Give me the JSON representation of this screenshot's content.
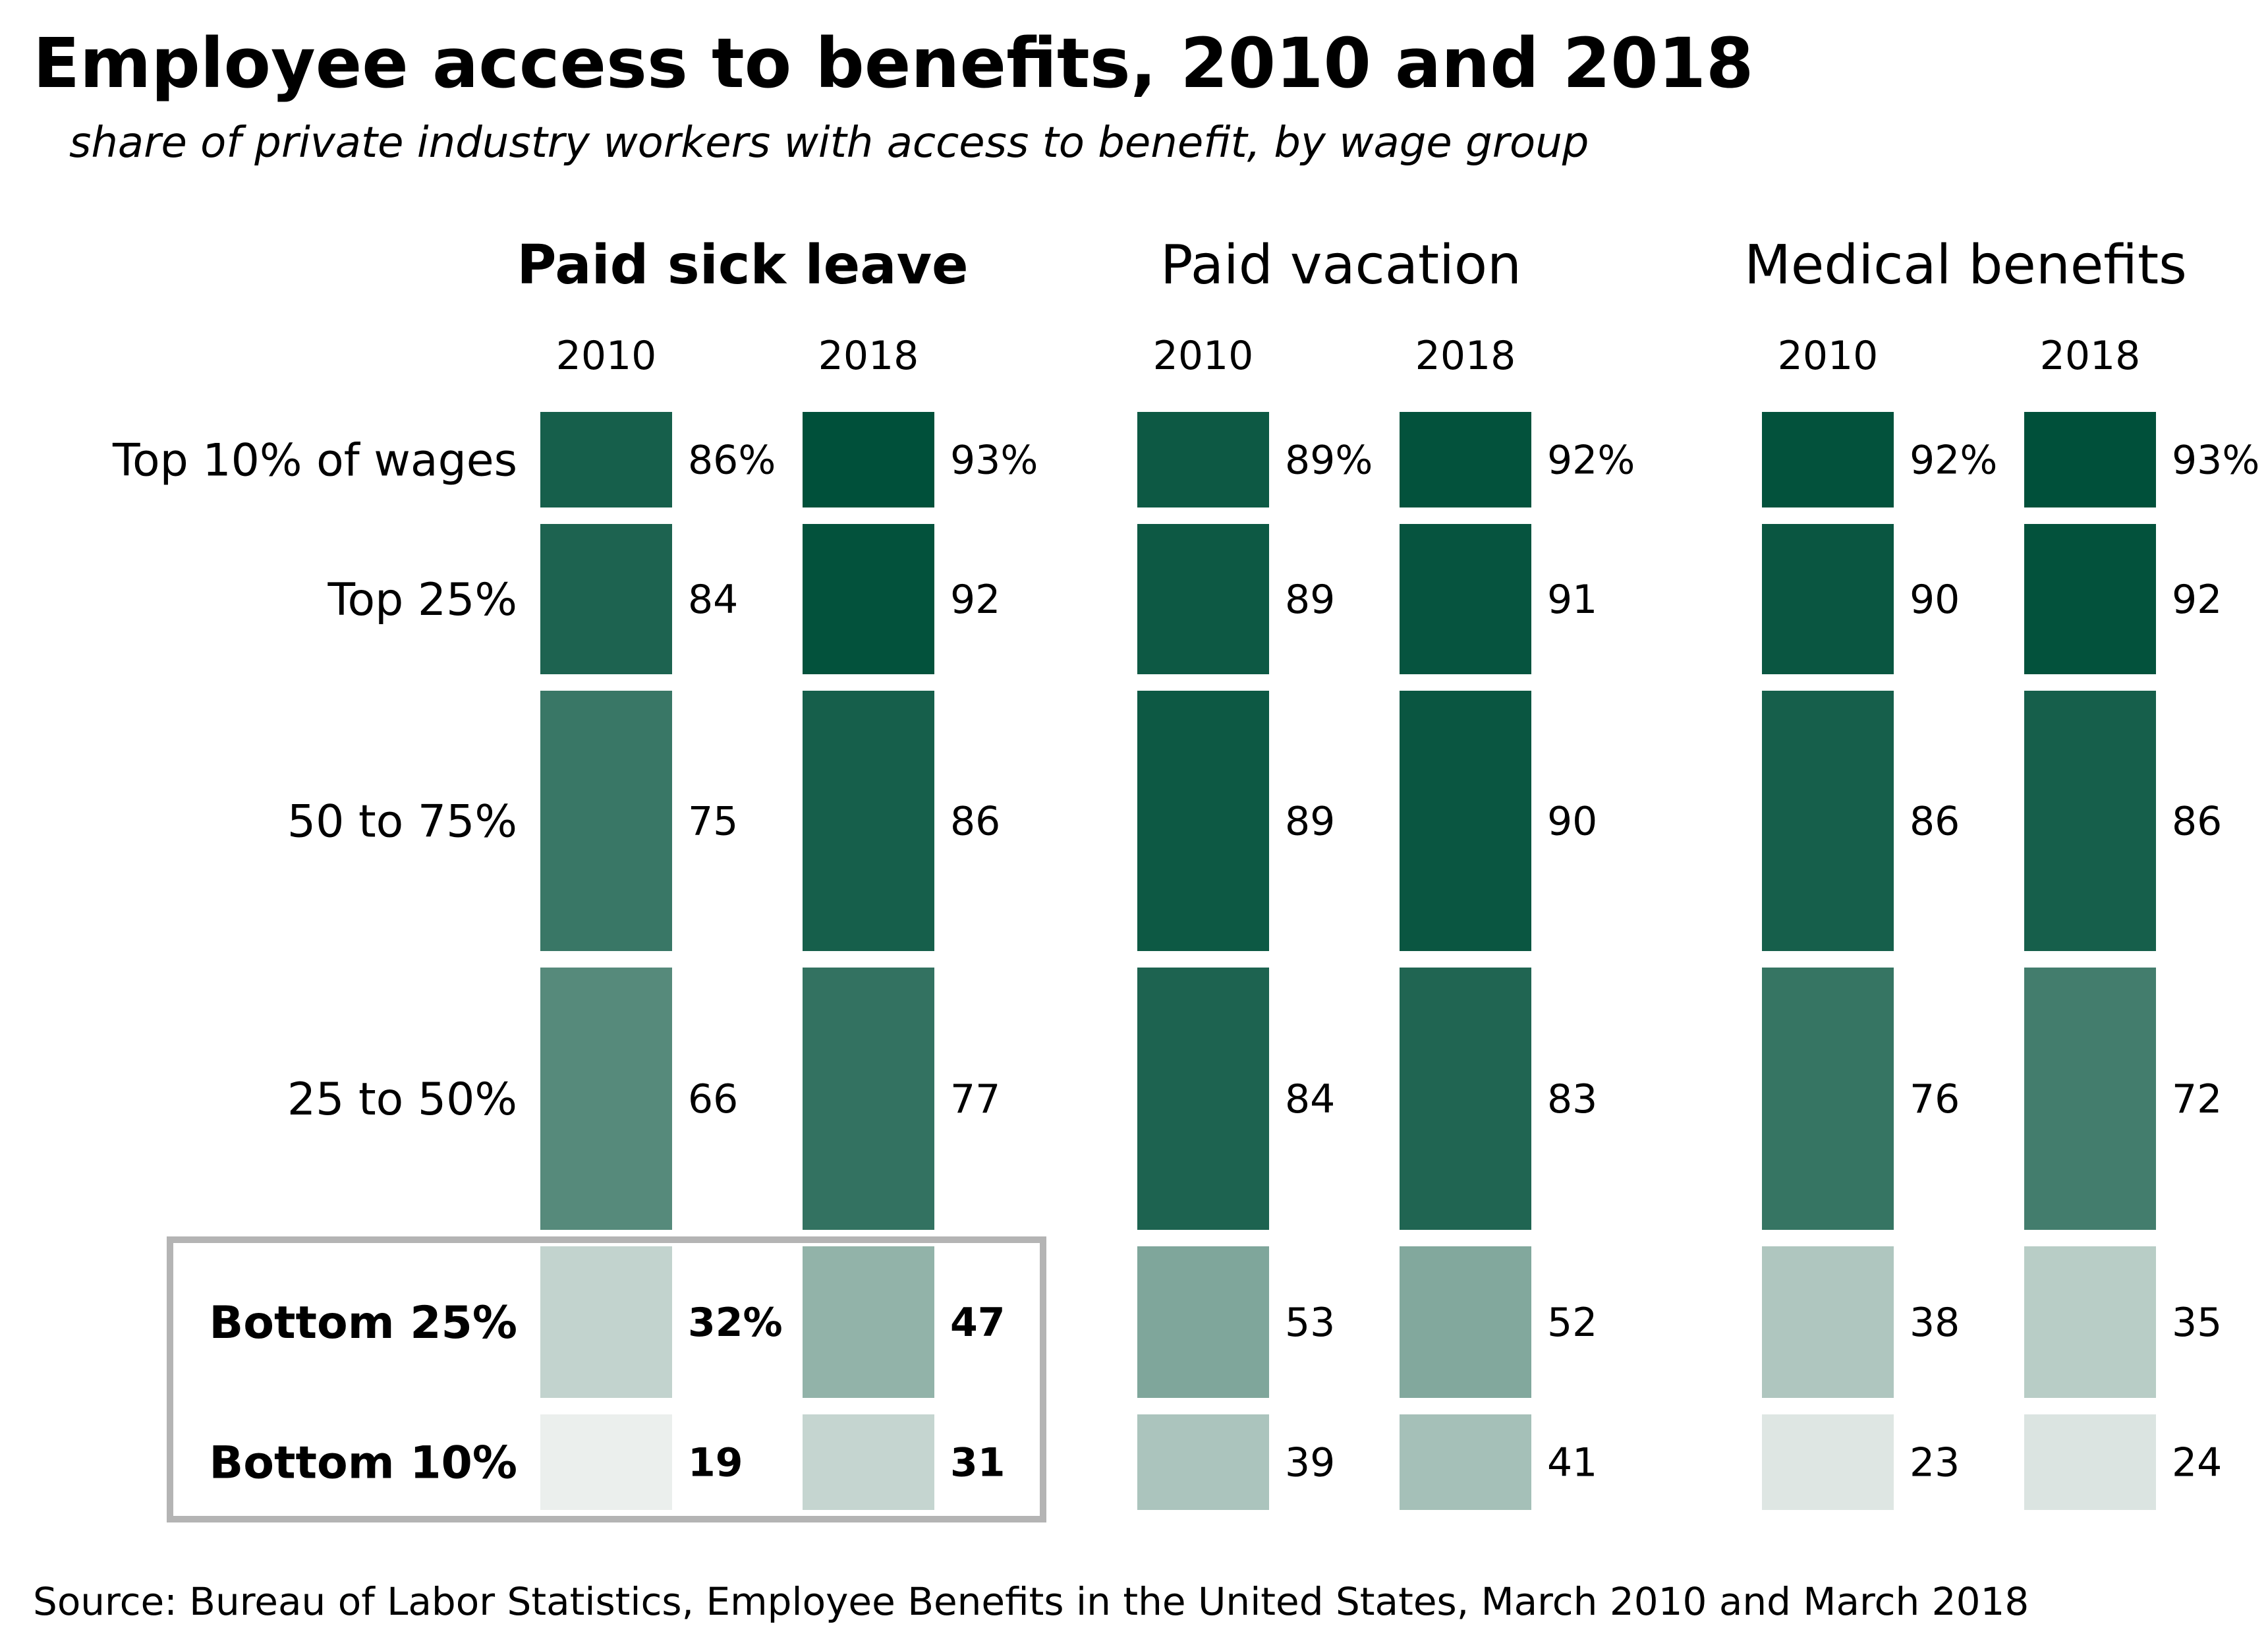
{
  "title": "Employee access to benefits, 2010 and 2018",
  "subtitle": "share of private industry workers with access to benefit, by wage group",
  "source": "Source: Bureau of Labor Statistics, Employee Benefits in the United States, March 2010 and March 2018",
  "chart_data": {
    "type": "heatmap",
    "rows": [
      "Top 10% of wages",
      "Top 25%",
      "50 to 75%",
      "25 to 50%",
      "Bottom 25%",
      "Bottom 10%"
    ],
    "highlighted_rows": [
      "Bottom 25%",
      "Bottom 10%"
    ],
    "panels": [
      {
        "title": "Paid sick leave",
        "emphasized": true,
        "columns": [
          {
            "year": "2010",
            "values": [
              86,
              84,
              75,
              66,
              32,
              19
            ],
            "labels": [
              "86%",
              "84",
              "75",
              "66",
              "32%",
              "19"
            ]
          },
          {
            "year": "2018",
            "values": [
              93,
              92,
              86,
              77,
              47,
              31
            ],
            "labels": [
              "93%",
              "92",
              "86",
              "77",
              "47",
              "31"
            ]
          }
        ]
      },
      {
        "title": "Paid vacation",
        "emphasized": false,
        "columns": [
          {
            "year": "2010",
            "values": [
              89,
              89,
              89,
              84,
              53,
              39
            ],
            "labels": [
              "89%",
              "89",
              "89",
              "84",
              "53",
              "39"
            ]
          },
          {
            "year": "2018",
            "values": [
              92,
              91,
              90,
              83,
              52,
              41
            ],
            "labels": [
              "92%",
              "91",
              "90",
              "83",
              "52",
              "41"
            ]
          }
        ]
      },
      {
        "title": "Medical benefits",
        "emphasized": false,
        "columns": [
          {
            "year": "2010",
            "values": [
              92,
              90,
              86,
              76,
              38,
              23
            ],
            "labels": [
              "92%",
              "90",
              "86",
              "76",
              "38",
              "23"
            ]
          },
          {
            "year": "2018",
            "values": [
              93,
              92,
              86,
              72,
              35,
              24
            ],
            "labels": [
              "93%",
              "92",
              "86",
              "72",
              "35",
              "24"
            ]
          }
        ]
      }
    ],
    "color_scale": {
      "low": "#ebefed",
      "high": "#00503a",
      "vmin": 19,
      "vmax": 93
    },
    "highlight_box_color": "#b4b4b4"
  }
}
